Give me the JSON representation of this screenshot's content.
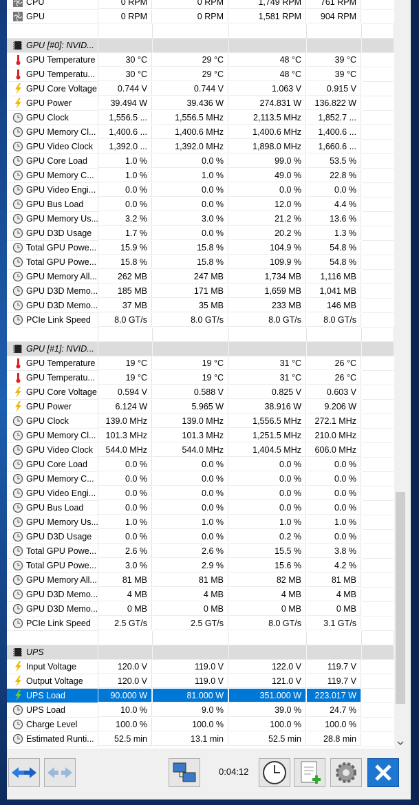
{
  "sections": [
    {
      "rows": [
        {
          "icon": "fan",
          "label": "CPU",
          "values": [
            "0 RPM",
            "0 RPM",
            "1,749 RPM",
            "761 RPM"
          ]
        },
        {
          "icon": "fan",
          "label": "GPU",
          "values": [
            "0 RPM",
            "0 RPM",
            "1,581 RPM",
            "904 RPM"
          ]
        }
      ]
    },
    {
      "title": "GPU [#0]: NVID...",
      "rows": [
        {
          "icon": "temp",
          "label": "GPU Temperature",
          "values": [
            "30 °C",
            "29 °C",
            "48 °C",
            "39 °C"
          ]
        },
        {
          "icon": "temp",
          "label": "GPU Temperatu...",
          "values": [
            "30 °C",
            "29 °C",
            "48 °C",
            "39 °C"
          ]
        },
        {
          "icon": "volt",
          "label": "GPU Core Voltage",
          "values": [
            "0.744 V",
            "0.744 V",
            "1.063 V",
            "0.915 V"
          ]
        },
        {
          "icon": "volt",
          "label": "GPU Power",
          "values": [
            "39.494 W",
            "39.436 W",
            "274.831 W",
            "136.822 W"
          ]
        },
        {
          "icon": "clock",
          "label": "GPU Clock",
          "values": [
            "1,556.5 ...",
            "1,556.5 MHz",
            "2,113.5 MHz",
            "1,852.7 ..."
          ]
        },
        {
          "icon": "clock",
          "label": "GPU Memory Cl...",
          "values": [
            "1,400.6 ...",
            "1,400.6 MHz",
            "1,400.6 MHz",
            "1,400.6 ..."
          ]
        },
        {
          "icon": "clock",
          "label": "GPU Video Clock",
          "values": [
            "1,392.0 ...",
            "1,392.0 MHz",
            "1,898.0 MHz",
            "1,660.6 ..."
          ]
        },
        {
          "icon": "clock",
          "label": "GPU Core Load",
          "values": [
            "1.0 %",
            "0.0 %",
            "99.0 %",
            "53.5 %"
          ]
        },
        {
          "icon": "clock",
          "label": "GPU Memory C...",
          "values": [
            "1.0 %",
            "1.0 %",
            "49.0 %",
            "22.8 %"
          ]
        },
        {
          "icon": "clock",
          "label": "GPU Video Engi...",
          "values": [
            "0.0 %",
            "0.0 %",
            "0.0 %",
            "0.0 %"
          ]
        },
        {
          "icon": "clock",
          "label": "GPU Bus Load",
          "values": [
            "0.0 %",
            "0.0 %",
            "12.0 %",
            "4.4 %"
          ]
        },
        {
          "icon": "clock",
          "label": "GPU Memory Us...",
          "values": [
            "3.2 %",
            "3.0 %",
            "21.2 %",
            "13.6 %"
          ]
        },
        {
          "icon": "clock",
          "label": "GPU D3D Usage",
          "values": [
            "1.7 %",
            "0.0 %",
            "20.2 %",
            "1.3 %"
          ]
        },
        {
          "icon": "clock",
          "label": "Total GPU Powe...",
          "values": [
            "15.9 %",
            "15.8 %",
            "104.9 %",
            "54.8 %"
          ]
        },
        {
          "icon": "clock",
          "label": "Total GPU Powe...",
          "values": [
            "15.8 %",
            "15.8 %",
            "109.9 %",
            "54.8 %"
          ]
        },
        {
          "icon": "clock",
          "label": "GPU Memory All...",
          "values": [
            "262 MB",
            "247 MB",
            "1,734 MB",
            "1,116 MB"
          ]
        },
        {
          "icon": "clock",
          "label": "GPU D3D Memo...",
          "values": [
            "185 MB",
            "171 MB",
            "1,659 MB",
            "1,041 MB"
          ]
        },
        {
          "icon": "clock",
          "label": "GPU D3D Memo...",
          "values": [
            "37 MB",
            "35 MB",
            "233 MB",
            "146 MB"
          ]
        },
        {
          "icon": "clock",
          "label": "PCIe Link Speed",
          "values": [
            "8.0 GT/s",
            "8.0 GT/s",
            "8.0 GT/s",
            "8.0 GT/s"
          ]
        }
      ]
    },
    {
      "title": "GPU [#1]: NVID...",
      "rows": [
        {
          "icon": "temp",
          "label": "GPU Temperature",
          "values": [
            "19 °C",
            "19 °C",
            "31 °C",
            "26 °C"
          ]
        },
        {
          "icon": "temp",
          "label": "GPU Temperatu...",
          "values": [
            "19 °C",
            "19 °C",
            "31 °C",
            "26 °C"
          ]
        },
        {
          "icon": "volt",
          "label": "GPU Core Voltage",
          "values": [
            "0.594 V",
            "0.588 V",
            "0.825 V",
            "0.603 V"
          ]
        },
        {
          "icon": "volt",
          "label": "GPU Power",
          "values": [
            "6.124 W",
            "5.965 W",
            "38.916 W",
            "9.206 W"
          ]
        },
        {
          "icon": "clock",
          "label": "GPU Clock",
          "values": [
            "139.0 MHz",
            "139.0 MHz",
            "1,556.5 MHz",
            "272.1 MHz"
          ]
        },
        {
          "icon": "clock",
          "label": "GPU Memory Cl...",
          "values": [
            "101.3 MHz",
            "101.3 MHz",
            "1,251.5 MHz",
            "210.0 MHz"
          ]
        },
        {
          "icon": "clock",
          "label": "GPU Video Clock",
          "values": [
            "544.0 MHz",
            "544.0 MHz",
            "1,404.5 MHz",
            "606.0 MHz"
          ]
        },
        {
          "icon": "clock",
          "label": "GPU Core Load",
          "values": [
            "0.0 %",
            "0.0 %",
            "0.0 %",
            "0.0 %"
          ]
        },
        {
          "icon": "clock",
          "label": "GPU Memory C...",
          "values": [
            "0.0 %",
            "0.0 %",
            "0.0 %",
            "0.0 %"
          ]
        },
        {
          "icon": "clock",
          "label": "GPU Video Engi...",
          "values": [
            "0.0 %",
            "0.0 %",
            "0.0 %",
            "0.0 %"
          ]
        },
        {
          "icon": "clock",
          "label": "GPU Bus Load",
          "values": [
            "0.0 %",
            "0.0 %",
            "0.0 %",
            "0.0 %"
          ]
        },
        {
          "icon": "clock",
          "label": "GPU Memory Us...",
          "values": [
            "1.0 %",
            "1.0 %",
            "1.0 %",
            "1.0 %"
          ]
        },
        {
          "icon": "clock",
          "label": "GPU D3D Usage",
          "values": [
            "0.0 %",
            "0.0 %",
            "0.2 %",
            "0.0 %"
          ]
        },
        {
          "icon": "clock",
          "label": "Total GPU Powe...",
          "values": [
            "2.6 %",
            "2.6 %",
            "15.5 %",
            "3.8 %"
          ]
        },
        {
          "icon": "clock",
          "label": "Total GPU Powe...",
          "values": [
            "3.0 %",
            "2.9 %",
            "15.6 %",
            "4.2 %"
          ]
        },
        {
          "icon": "clock",
          "label": "GPU Memory All...",
          "values": [
            "81 MB",
            "81 MB",
            "82 MB",
            "81 MB"
          ]
        },
        {
          "icon": "clock",
          "label": "GPU D3D Memo...",
          "values": [
            "4 MB",
            "4 MB",
            "4 MB",
            "4 MB"
          ]
        },
        {
          "icon": "clock",
          "label": "GPU D3D Memo...",
          "values": [
            "0 MB",
            "0 MB",
            "0 MB",
            "0 MB"
          ]
        },
        {
          "icon": "clock",
          "label": "PCIe Link Speed",
          "values": [
            "2.5 GT/s",
            "2.5 GT/s",
            "8.0 GT/s",
            "3.1 GT/s"
          ]
        }
      ]
    },
    {
      "title": "UPS",
      "rows": [
        {
          "icon": "volt",
          "label": "Input Voltage",
          "values": [
            "120.0 V",
            "119.0 V",
            "122.0 V",
            "119.7 V"
          ]
        },
        {
          "icon": "volt",
          "label": "Output Voltage",
          "values": [
            "120.0 V",
            "119.0 V",
            "121.0 V",
            "119.7 V"
          ]
        },
        {
          "icon": "volt",
          "label": "UPS Load",
          "selected": true,
          "values": [
            "90.000 W",
            "81.000 W",
            "351.000 W",
            "223.017 W"
          ]
        },
        {
          "icon": "clock",
          "label": "UPS Load",
          "values": [
            "10.0 %",
            "9.0 %",
            "39.0 %",
            "24.7 %"
          ]
        },
        {
          "icon": "clock",
          "label": "Charge Level",
          "values": [
            "100.0 %",
            "100.0 %",
            "100.0 %",
            "100.0 %"
          ]
        },
        {
          "icon": "clock",
          "label": "Estimated Runti...",
          "values": [
            "52.5 min",
            "13.1 min",
            "52.5 min",
            "28.8 min"
          ]
        }
      ]
    }
  ],
  "toolbar": {
    "timer": "0:04:12"
  }
}
